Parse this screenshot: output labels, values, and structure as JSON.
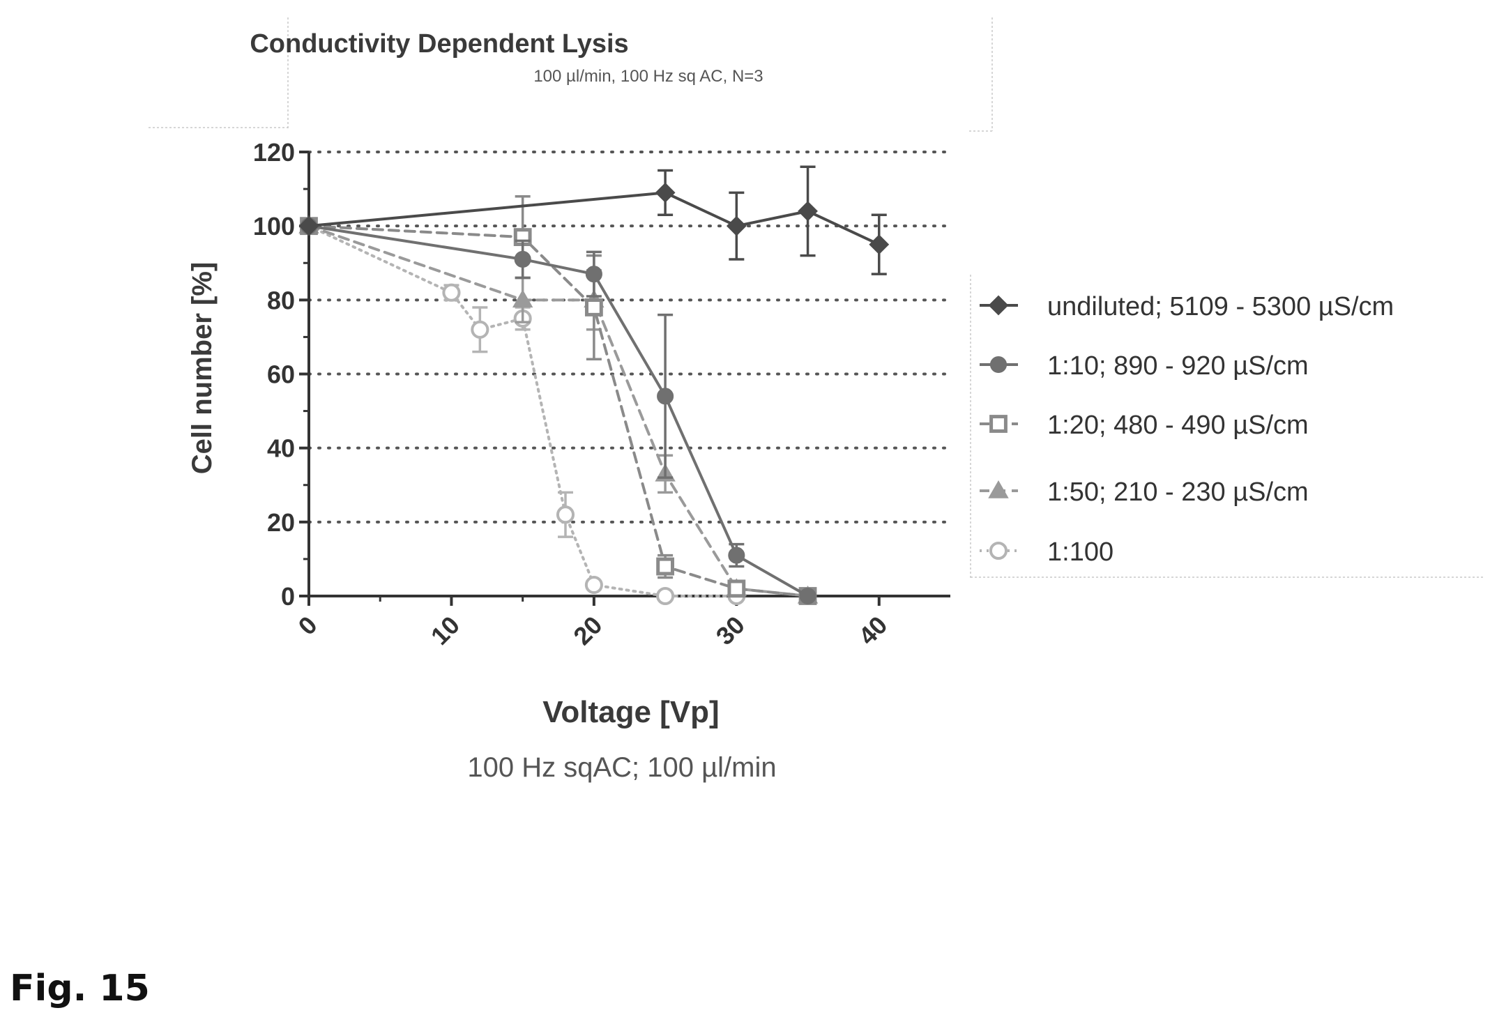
{
  "figure_label": "Fig. 15",
  "chart_data": {
    "type": "line",
    "title": "Conductivity Dependent Lysis",
    "subtitle": "100 µl/min, 100 Hz sq AC, N=3",
    "xlabel": "Voltage [Vp]",
    "xlabel_secondary": "100 Hz sqAC; 100 µl/min",
    "ylabel": "Cell number [%]",
    "xlim": [
      0,
      45
    ],
    "ylim": [
      0,
      120
    ],
    "x_ticks": [
      0,
      10,
      20,
      30,
      40
    ],
    "y_ticks": [
      0,
      20,
      40,
      60,
      80,
      100,
      120
    ],
    "grid": "horizontal dotted",
    "legend_position": "right",
    "series": [
      {
        "name": "undiluted; 5109 - 5300 µS/cm",
        "marker": "diamond",
        "line": "solid",
        "color": "#4a4a4a",
        "x": [
          0,
          25,
          30,
          35,
          40
        ],
        "y": [
          100,
          109,
          100,
          104,
          95
        ],
        "err": [
          0,
          6,
          9,
          12,
          8
        ]
      },
      {
        "name": "1:10; 890 - 920 µS/cm",
        "marker": "circle",
        "line": "solid",
        "color": "#707070",
        "x": [
          0,
          15,
          20,
          25,
          30,
          35
        ],
        "y": [
          100,
          91,
          87,
          54,
          11,
          0
        ],
        "err": [
          0,
          5,
          6,
          22,
          3,
          0
        ]
      },
      {
        "name": "1:20; 480 - 490 µS/cm",
        "marker": "square",
        "line": "dashed",
        "color": "#8a8a8a",
        "x": [
          0,
          15,
          20,
          25,
          30,
          35
        ],
        "y": [
          100,
          97,
          78,
          8,
          2,
          0
        ],
        "err": [
          0,
          11,
          14,
          3,
          1,
          0
        ]
      },
      {
        "name": "1:50; 210 - 230 µS/cm",
        "marker": "triangle",
        "line": "dashed",
        "color": "#9a9a9a",
        "x": [
          0,
          15,
          20,
          25,
          30,
          35
        ],
        "y": [
          100,
          80,
          80,
          33,
          2,
          0
        ],
        "err": [
          0,
          6,
          8,
          5,
          1,
          0
        ]
      },
      {
        "name": "1:100",
        "marker": "open-circle",
        "line": "dotted",
        "color": "#b4b4b4",
        "x": [
          0,
          10,
          12,
          15,
          18,
          20,
          25,
          30
        ],
        "y": [
          100,
          82,
          72,
          75,
          22,
          3,
          0,
          0
        ],
        "err": [
          0,
          2,
          6,
          3,
          6,
          1,
          0,
          0
        ]
      }
    ]
  }
}
